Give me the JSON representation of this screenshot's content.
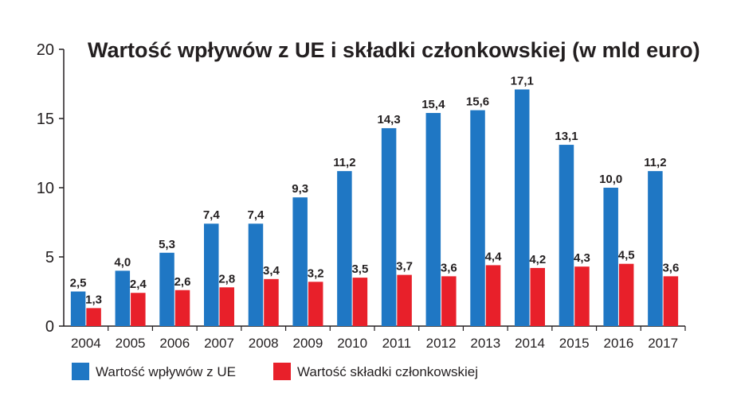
{
  "chart_data": {
    "type": "bar",
    "title": "Wartość wpływów z UE i składki członkowskiej (w mld euro)",
    "xlabel": "",
    "ylabel": "",
    "ylim": [
      0,
      20
    ],
    "yticks": [
      "0",
      "5",
      "10",
      "15",
      "20"
    ],
    "grid": false,
    "legend_position": "bottom-left",
    "categories": [
      "2004",
      "2005",
      "2006",
      "2007",
      "2008",
      "2009",
      "2010",
      "2011",
      "2012",
      "2013",
      "2014",
      "2015",
      "2016",
      "2017"
    ],
    "series": [
      {
        "name": "Wartość wpływów z UE",
        "color": "#1f77c4",
        "values": [
          2.5,
          4.0,
          5.3,
          7.4,
          7.4,
          9.3,
          11.2,
          14.3,
          15.4,
          15.6,
          17.1,
          13.1,
          10.0,
          11.2
        ],
        "labels": [
          "2,5",
          "4,0",
          "5,3",
          "7,4",
          "7,4",
          "9,3",
          "11,2",
          "14,3",
          "15,4",
          "15,6",
          "17,1",
          "13,1",
          "10,0",
          "11,2"
        ]
      },
      {
        "name": "Wartość składki członkowskiej",
        "color": "#e8202a",
        "values": [
          1.3,
          2.4,
          2.6,
          2.8,
          3.4,
          3.2,
          3.5,
          3.7,
          3.6,
          4.4,
          4.2,
          4.3,
          4.5,
          3.6
        ],
        "labels": [
          "1,3",
          "2,4",
          "2,6",
          "2,8",
          "3,4",
          "3,2",
          "3,5",
          "3,7",
          "3,6",
          "4,4",
          "4,2",
          "4,3",
          "4,5",
          "3,6"
        ]
      }
    ]
  }
}
